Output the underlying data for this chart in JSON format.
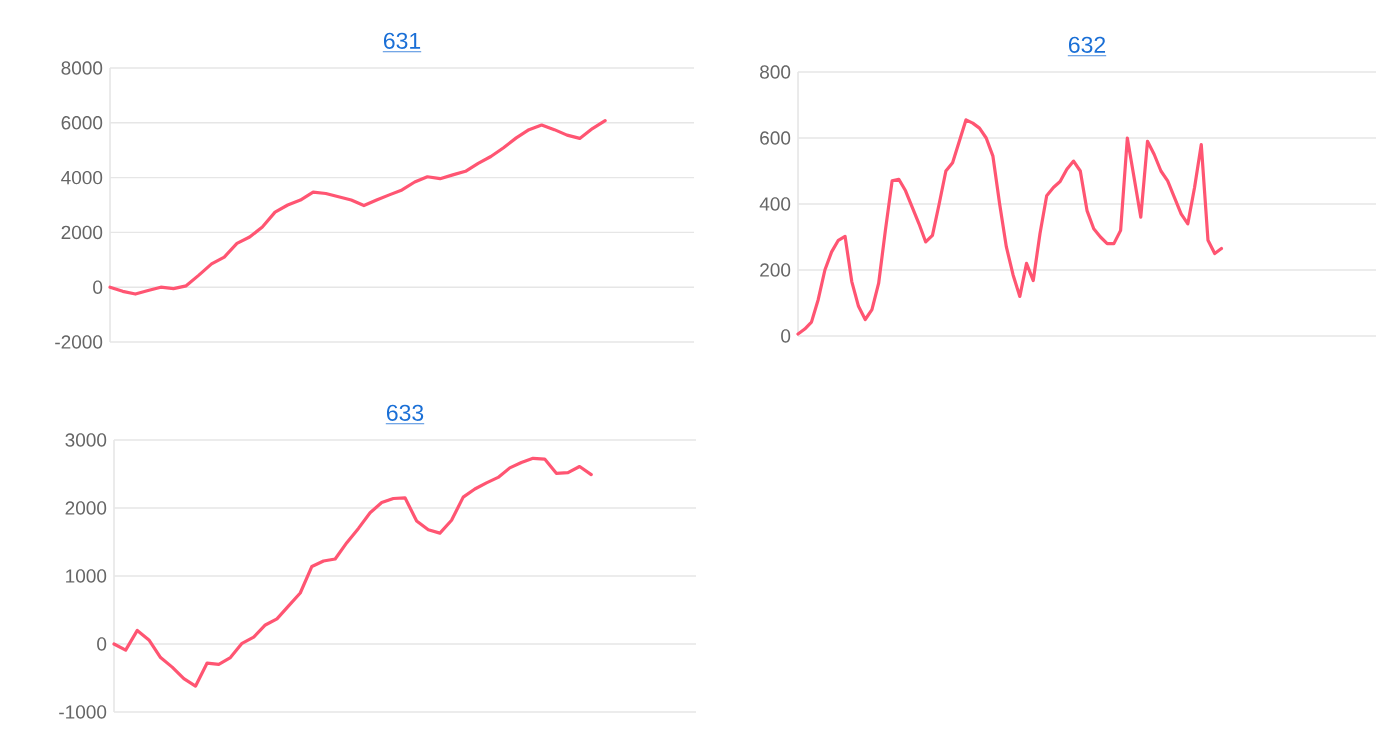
{
  "chart_data": [
    {
      "type": "line",
      "title": "631",
      "categories": [
        null,
        null,
        null,
        null,
        null,
        null,
        null,
        null,
        null,
        null,
        null,
        null,
        null,
        null,
        null,
        null,
        null,
        null,
        null,
        null,
        null,
        null,
        null,
        null,
        null,
        null,
        null,
        null,
        null,
        null,
        null,
        null,
        null,
        null,
        null,
        null,
        null,
        null,
        null,
        null,
        null,
        null,
        null,
        null,
        null,
        null,
        null
      ],
      "series": [
        {
          "color": "#ff5572",
          "values": [
            0,
            -150,
            -250,
            -120,
            0,
            -50,
            50,
            440,
            850,
            1100,
            1600,
            1830,
            2200,
            2740,
            3000,
            3180,
            3470,
            3420,
            3300,
            3180,
            2980,
            3180,
            3370,
            3550,
            3840,
            4030,
            3960,
            4100,
            4230,
            4520,
            4770,
            5090,
            5450,
            5750,
            5920,
            5750,
            5550,
            5430,
            5790,
            6080,
            null,
            null,
            null,
            null,
            null,
            null,
            null
          ]
        }
      ],
      "ylim": [
        -2000,
        8000
      ],
      "yticks": [
        -2000,
        0,
        2000,
        4000,
        6000,
        8000
      ],
      "grid": "y",
      "marker": "none",
      "line_style": "solid"
    },
    {
      "type": "line",
      "title": "632",
      "categories": [
        null,
        null,
        null,
        null,
        null,
        null,
        null,
        null,
        null,
        null,
        null,
        null,
        null,
        null,
        null,
        null,
        null,
        null,
        null,
        null,
        null,
        null,
        null,
        null,
        null,
        null,
        null,
        null,
        null,
        null,
        null,
        null,
        null,
        null,
        null,
        null,
        null,
        null,
        null,
        null,
        null,
        null,
        null,
        null,
        null,
        null,
        null,
        null,
        null,
        null,
        null,
        null,
        null,
        null,
        null,
        null,
        null,
        null,
        null,
        null,
        null,
        null,
        null,
        null,
        null,
        null,
        null,
        null,
        null,
        null,
        null,
        null,
        null,
        null,
        null,
        null,
        null,
        null,
        null,
        null,
        null,
        null,
        null,
        null,
        null,
        null,
        null
      ],
      "series": [
        {
          "color": "#ff5572",
          "values": [
            6,
            21,
            42,
            110,
            200,
            255,
            290,
            302,
            165,
            90,
            50,
            80,
            160,
            320,
            470,
            475,
            440,
            390,
            340,
            285,
            305,
            400,
            500,
            525,
            590,
            655,
            645,
            630,
            600,
            545,
            400,
            270,
            185,
            120,
            220,
            168,
            310,
            425,
            450,
            468,
            505,
            530,
            500,
            380,
            325,
            300,
            280,
            280,
            320,
            600,
            480,
            360,
            590,
            550,
            500,
            470,
            420,
            370,
            340,
            450,
            580,
            290,
            250,
            265,
            null,
            null,
            null,
            null,
            null,
            null,
            null,
            null,
            null,
            null,
            null,
            null,
            null,
            null,
            null,
            null,
            null,
            null,
            null,
            null,
            null,
            null,
            null
          ]
        }
      ],
      "ylim": [
        0,
        800
      ],
      "yticks": [
        0,
        200,
        400,
        600,
        800
      ],
      "grid": "y",
      "marker": "none",
      "line_style": "solid"
    },
    {
      "type": "line",
      "title": "633",
      "categories": [
        null,
        null,
        null,
        null,
        null,
        null,
        null,
        null,
        null,
        null,
        null,
        null,
        null,
        null,
        null,
        null,
        null,
        null,
        null,
        null,
        null,
        null,
        null,
        null,
        null,
        null,
        null,
        null,
        null,
        null,
        null,
        null,
        null,
        null,
        null,
        null,
        null,
        null,
        null,
        null,
        null,
        null,
        null,
        null,
        null,
        null,
        null,
        null,
        null,
        null,
        null
      ],
      "series": [
        {
          "color": "#ff5572",
          "values": [
            0,
            -90,
            200,
            60,
            -200,
            -340,
            -510,
            -620,
            -280,
            -300,
            -200,
            10,
            100,
            280,
            370,
            560,
            750,
            1140,
            1220,
            1250,
            1490,
            1700,
            1930,
            2080,
            2140,
            2150,
            1810,
            1680,
            1630,
            1820,
            2160,
            2280,
            2370,
            2450,
            2590,
            2670,
            2730,
            2720,
            2510,
            2520,
            2610,
            2490,
            null,
            null,
            null,
            null,
            null,
            null,
            null,
            null,
            null
          ]
        }
      ],
      "ylim": [
        -1000,
        3000
      ],
      "yticks": [
        -1000,
        0,
        1000,
        2000,
        3000
      ],
      "grid": "y",
      "marker": "none",
      "line_style": "solid"
    }
  ]
}
